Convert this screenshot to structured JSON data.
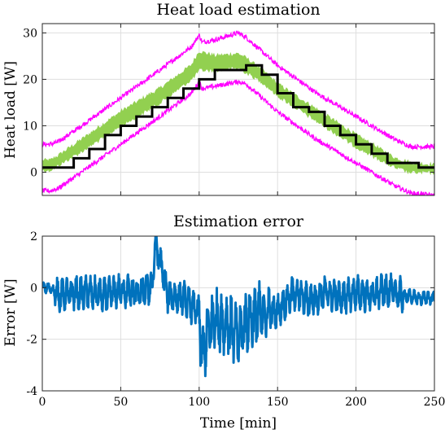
{
  "chart_data": [
    {
      "type": "line",
      "title": "Heat load estimation",
      "xlabel": "",
      "ylabel": "Heat load [W]",
      "xlim": [
        0,
        250
      ],
      "ylim": [
        -5,
        32
      ],
      "xticks": [
        0,
        50,
        100,
        150,
        200,
        250
      ],
      "yticks": [
        0,
        10,
        20,
        30
      ],
      "grid": true,
      "series": [
        {
          "role": "upper-bound",
          "color": "#ff00ff",
          "x": [
            0,
            5,
            10,
            25,
            50,
            75,
            95,
            100,
            102,
            110,
            125,
            130,
            150,
            175,
            200,
            225,
            235,
            250
          ],
          "y": [
            6,
            6,
            6.5,
            10,
            16,
            22,
            27,
            29.5,
            28,
            28.5,
            30,
            29,
            23,
            17,
            12,
            7,
            5.5,
            5.5
          ]
        },
        {
          "role": "lower-bound",
          "color": "#ff00ff",
          "x": [
            0,
            5,
            10,
            25,
            50,
            75,
            95,
            100,
            102,
            110,
            125,
            130,
            150,
            175,
            200,
            225,
            235,
            250
          ],
          "y": [
            -4,
            -4,
            -3.5,
            0,
            6,
            12,
            17,
            19.5,
            18,
            18.5,
            19.5,
            19,
            13,
            7,
            2,
            -3,
            -4.5,
            -5
          ]
        },
        {
          "role": "band-upper",
          "color": "#92d050",
          "x": [
            0,
            5,
            10,
            25,
            50,
            75,
            95,
            100,
            110,
            125,
            130,
            140,
            150,
            175,
            200,
            225,
            235,
            250
          ],
          "y": [
            2.5,
            2.5,
            3.5,
            7,
            13,
            18,
            23,
            26,
            25,
            25.5,
            24.5,
            22,
            19,
            13.5,
            8,
            3,
            2,
            1.5
          ]
        },
        {
          "role": "band-lower",
          "color": "#92d050",
          "x": [
            0,
            5,
            10,
            25,
            50,
            75,
            95,
            100,
            110,
            125,
            130,
            140,
            150,
            175,
            200,
            225,
            235,
            250
          ],
          "y": [
            0.5,
            0.5,
            1.5,
            4.5,
            10,
            15,
            20,
            22,
            22,
            22.5,
            21.5,
            19.5,
            16.5,
            11,
            5.5,
            1,
            0,
            0
          ]
        },
        {
          "role": "true",
          "color": "#000000",
          "x": [
            0,
            10,
            20,
            30,
            40,
            50,
            60,
            70,
            80,
            90,
            100,
            110,
            120,
            130,
            140,
            150,
            160,
            170,
            180,
            190,
            200,
            210,
            220,
            230,
            240,
            250
          ],
          "y": [
            1,
            1,
            3,
            5,
            8,
            10,
            12,
            14,
            16,
            18,
            20,
            22,
            22,
            23,
            21,
            17,
            14,
            13,
            10,
            8,
            6,
            4,
            2,
            2,
            1,
            1
          ]
        }
      ]
    },
    {
      "type": "line",
      "title": "Estimation error",
      "xlabel": "Time [min]",
      "ylabel": "Error [W]",
      "xlim": [
        0,
        250
      ],
      "ylim": [
        -4,
        2
      ],
      "xticks": [
        0,
        50,
        100,
        150,
        200,
        250
      ],
      "yticks": [
        -4,
        -2,
        0,
        2
      ],
      "grid": true,
      "series": [
        {
          "color": "#0072bd",
          "x": [
            0,
            5,
            10,
            20,
            30,
            40,
            50,
            60,
            70,
            72,
            80,
            90,
            100,
            102,
            105,
            110,
            120,
            125,
            130,
            140,
            150,
            160,
            170,
            180,
            190,
            200,
            210,
            220,
            230,
            240,
            250
          ],
          "y": [
            0,
            0,
            -0.3,
            -0.2,
            -0.2,
            -0.3,
            -0.1,
            -0.2,
            0,
            1.8,
            -0.3,
            -0.4,
            -1,
            -2.8,
            -1.8,
            -1.2,
            -1.5,
            -2,
            -1.3,
            -1,
            -0.9,
            -0.2,
            -0.5,
            -0.2,
            -0.4,
            -0.2,
            -0.3,
            -0.1,
            -0.3,
            -0.4,
            -0.4
          ]
        }
      ]
    }
  ]
}
